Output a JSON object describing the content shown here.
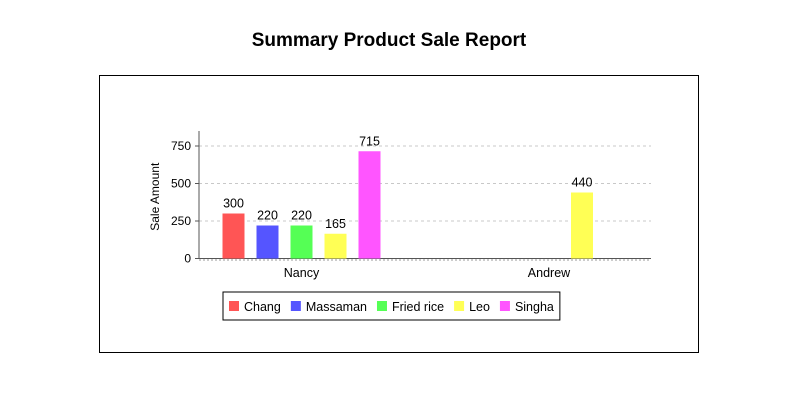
{
  "report": {
    "title": "Summary Product Sale Report"
  },
  "chart_data": {
    "type": "bar",
    "title": "Summary Product Sale Report",
    "xlabel": "",
    "ylabel": "Sale Amount",
    "ylim": [
      0,
      850
    ],
    "yticks": [
      0,
      250,
      500,
      750
    ],
    "grid": true,
    "legend": "bottom",
    "categories": [
      "Nancy",
      "Andrew"
    ],
    "series": [
      {
        "name": "Chang",
        "color": "#ff5555",
        "values": [
          300,
          null
        ]
      },
      {
        "name": "Massaman",
        "color": "#5555ff",
        "values": [
          220,
          null
        ]
      },
      {
        "name": "Fried rice",
        "color": "#55ff55",
        "values": [
          220,
          null
        ]
      },
      {
        "name": "Leo",
        "color": "#ffff55",
        "values": [
          165,
          440
        ]
      },
      {
        "name": "Singha",
        "color": "#ff55ff",
        "values": [
          715,
          null
        ]
      }
    ]
  }
}
